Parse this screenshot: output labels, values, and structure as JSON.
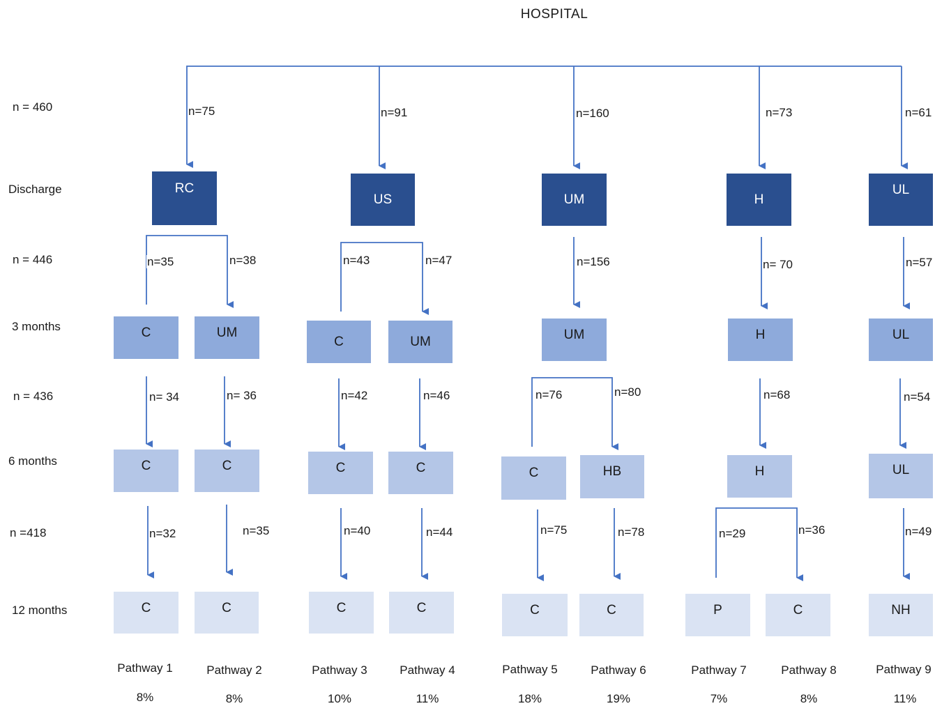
{
  "title": "HOSPITAL",
  "rows": {
    "labels": {
      "discharge": "Discharge",
      "m3": "3 months",
      "m6": "6 months",
      "m12": "12 months"
    },
    "counts": {
      "top": "n = 460",
      "r1": "n = 446",
      "r2": "n = 436",
      "r3": "n =418"
    }
  },
  "discharge_boxes": [
    "RC",
    "US",
    "UM",
    "H",
    "UL"
  ],
  "top_counts": [
    "n=75",
    "n=91",
    "n=160",
    "n=73",
    "n=61"
  ],
  "m3": {
    "counts": [
      "n=35",
      "n=38",
      "n=43",
      "n=47",
      "n=156",
      "n= 70",
      "n=57"
    ],
    "boxes": [
      "C",
      "UM",
      "C",
      "UM",
      "UM",
      "H",
      "UL"
    ]
  },
  "m6": {
    "counts": [
      "n= 34",
      "n= 36",
      "n=42",
      "n=46",
      "n=76",
      "n=80",
      "n=68",
      "n=54"
    ],
    "boxes": [
      "C",
      "C",
      "C",
      "C",
      "C",
      "HB",
      "H",
      "UL"
    ]
  },
  "m12": {
    "counts": [
      "n=32",
      "n=35",
      "n=40",
      "n=44",
      "n=75",
      "n=78",
      "n=29",
      "n=36",
      "n=49"
    ],
    "boxes": [
      "C",
      "C",
      "C",
      "C",
      "C",
      "C",
      "P",
      "C",
      "NH"
    ]
  },
  "pathways": [
    {
      "label": "Pathway 1",
      "pct": "8%"
    },
    {
      "label": "Pathway 2",
      "pct": "8%"
    },
    {
      "label": "Pathway 3",
      "pct": "10%"
    },
    {
      "label": "Pathway 4",
      "pct": "11%"
    },
    {
      "label": "Pathway 5",
      "pct": "18%"
    },
    {
      "label": "Pathway 6",
      "pct": "19%"
    },
    {
      "label": "Pathway 7",
      "pct": "7%"
    },
    {
      "label": "Pathway 8",
      "pct": "8%"
    },
    {
      "label": "Pathway 9",
      "pct": "11%"
    }
  ],
  "colors": {
    "arrow": "#4472c4",
    "discharge_box": "#2a4f8f",
    "month3_box": "#8eaadb",
    "month6_box": "#b4c6e7",
    "month12_box": "#dae3f3"
  }
}
